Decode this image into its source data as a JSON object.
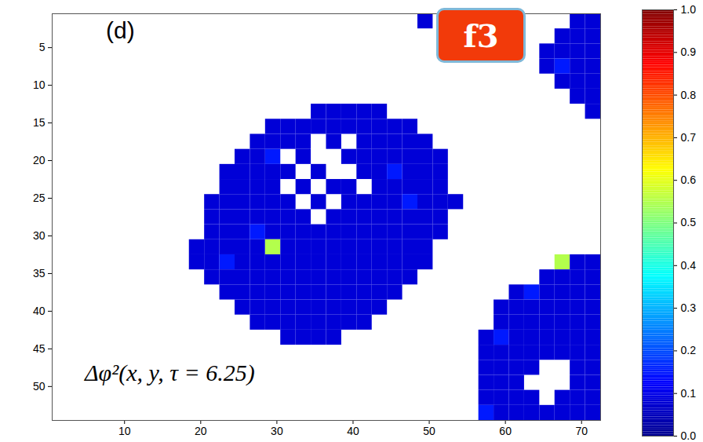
{
  "chart_data": {
    "type": "heatmap",
    "title": "Δφ²(x, y, τ = 6.25)",
    "panel": "(d)",
    "badge": "f3",
    "xlim": [
      0.5,
      72.5
    ],
    "ylim": [
      0.5,
      54.5
    ],
    "xticks": [
      10,
      20,
      30,
      40,
      50,
      60,
      70
    ],
    "yticks": [
      5,
      10,
      15,
      20,
      25,
      30,
      35,
      40,
      45,
      50
    ],
    "x": [
      1.5,
      3.5,
      5.5,
      7.5,
      9.5,
      11.5,
      13.5,
      15.5,
      17.5,
      19.5,
      21.5,
      23.5,
      25.5,
      27.5,
      29.5,
      31.5,
      33.5,
      35.5,
      37.5,
      39.5,
      41.5,
      43.5,
      45.5,
      47.5,
      49.5,
      51.5,
      53.5,
      55.5,
      57.5,
      59.5,
      61.5,
      63.5,
      65.5,
      67.5,
      69.5,
      71.5
    ],
    "y": [
      1.5,
      3.5,
      5.5,
      7.5,
      9.5,
      11.5,
      13.5,
      15.5,
      17.5,
      19.5,
      21.5,
      23.5,
      25.5,
      27.5,
      29.5,
      31.5,
      33.5,
      35.5,
      37.5,
      39.5,
      41.5,
      43.5,
      45.5,
      47.5,
      49.5,
      51.5,
      53.5
    ],
    "cells": [
      [
        null,
        null,
        null,
        null,
        null,
        null,
        null,
        null,
        null,
        null,
        null,
        null,
        null,
        null,
        null,
        null,
        null,
        null,
        null,
        null,
        null,
        null,
        null,
        null,
        0.08,
        null,
        null,
        null,
        null,
        null,
        null,
        null,
        null,
        null,
        0.08,
        0.08
      ],
      [
        null,
        null,
        null,
        null,
        null,
        null,
        null,
        null,
        null,
        null,
        null,
        null,
        null,
        null,
        null,
        null,
        null,
        null,
        null,
        null,
        null,
        null,
        null,
        null,
        null,
        null,
        null,
        null,
        null,
        null,
        null,
        null,
        null,
        0.08,
        0.08,
        0.08
      ],
      [
        null,
        null,
        null,
        null,
        null,
        null,
        null,
        null,
        null,
        null,
        null,
        null,
        null,
        null,
        null,
        null,
        null,
        null,
        null,
        null,
        null,
        null,
        null,
        null,
        null,
        null,
        null,
        null,
        null,
        null,
        null,
        null,
        0.08,
        0.08,
        0.08,
        0.08
      ],
      [
        null,
        null,
        null,
        null,
        null,
        null,
        null,
        null,
        null,
        null,
        null,
        null,
        null,
        null,
        null,
        null,
        null,
        null,
        null,
        null,
        null,
        null,
        null,
        null,
        null,
        null,
        null,
        null,
        null,
        null,
        null,
        null,
        0.08,
        0.15,
        0.08,
        0.08
      ],
      [
        null,
        null,
        null,
        null,
        null,
        null,
        null,
        null,
        null,
        null,
        null,
        null,
        null,
        null,
        null,
        null,
        null,
        null,
        null,
        null,
        null,
        null,
        null,
        null,
        null,
        null,
        null,
        null,
        null,
        null,
        null,
        null,
        null,
        0.08,
        0.08,
        0.08
      ],
      [
        null,
        null,
        null,
        null,
        null,
        null,
        null,
        null,
        null,
        null,
        null,
        null,
        null,
        null,
        null,
        null,
        null,
        null,
        null,
        null,
        null,
        null,
        null,
        null,
        null,
        null,
        null,
        null,
        null,
        null,
        null,
        null,
        null,
        null,
        0.08,
        0.08
      ],
      [
        null,
        null,
        null,
        null,
        null,
        null,
        null,
        null,
        null,
        null,
        null,
        null,
        null,
        null,
        null,
        null,
        null,
        0.08,
        0.08,
        0.08,
        0.08,
        0.08,
        null,
        null,
        null,
        null,
        null,
        null,
        null,
        null,
        null,
        null,
        null,
        null,
        null,
        0.08
      ],
      [
        null,
        null,
        null,
        null,
        null,
        null,
        null,
        null,
        null,
        null,
        null,
        null,
        null,
        null,
        0.08,
        0.08,
        0.08,
        0.08,
        0.08,
        0.08,
        0.08,
        0.08,
        0.08,
        0.08,
        null,
        null,
        null,
        null,
        null,
        null,
        null,
        null,
        null,
        null,
        null,
        null
      ],
      [
        null,
        null,
        null,
        null,
        null,
        null,
        null,
        null,
        null,
        null,
        null,
        null,
        null,
        0.08,
        0.08,
        0.08,
        0.08,
        null,
        0.08,
        null,
        0.08,
        0.08,
        0.08,
        0.08,
        0.08,
        null,
        null,
        null,
        null,
        null,
        null,
        null,
        null,
        null,
        null,
        null
      ],
      [
        null,
        null,
        null,
        null,
        null,
        null,
        null,
        null,
        null,
        null,
        null,
        null,
        0.08,
        0.08,
        0.15,
        null,
        0.08,
        null,
        null,
        0.08,
        0.08,
        0.08,
        0.08,
        0.08,
        0.08,
        0.08,
        null,
        null,
        null,
        null,
        null,
        null,
        null,
        null,
        null,
        null
      ],
      [
        null,
        null,
        null,
        null,
        null,
        null,
        null,
        null,
        null,
        null,
        null,
        0.08,
        0.08,
        0.08,
        0.08,
        0.08,
        null,
        0.08,
        null,
        null,
        0.08,
        0.08,
        0.15,
        0.08,
        0.08,
        0.08,
        null,
        null,
        null,
        null,
        null,
        null,
        null,
        null,
        null,
        null
      ],
      [
        null,
        null,
        null,
        null,
        null,
        null,
        null,
        null,
        null,
        null,
        null,
        0.08,
        0.08,
        0.08,
        0.08,
        null,
        0.08,
        null,
        0.08,
        0.08,
        null,
        0.08,
        0.08,
        0.08,
        0.08,
        0.08,
        null,
        null,
        null,
        null,
        null,
        null,
        null,
        null,
        null,
        null
      ],
      [
        null,
        null,
        null,
        null,
        null,
        null,
        null,
        null,
        null,
        null,
        0.08,
        0.08,
        0.08,
        0.08,
        0.08,
        0.08,
        null,
        0.08,
        null,
        0.08,
        0.08,
        0.08,
        0.08,
        0.15,
        0.08,
        0.08,
        0.08,
        null,
        null,
        null,
        null,
        null,
        null,
        null,
        null,
        null
      ],
      [
        null,
        null,
        null,
        null,
        null,
        null,
        null,
        null,
        null,
        null,
        0.08,
        0.08,
        0.08,
        0.08,
        0.08,
        0.08,
        0.08,
        null,
        0.08,
        0.08,
        0.08,
        0.08,
        0.08,
        0.08,
        0.08,
        0.08,
        null,
        null,
        null,
        null,
        null,
        null,
        null,
        null,
        null,
        null
      ],
      [
        null,
        null,
        null,
        null,
        null,
        null,
        null,
        null,
        null,
        null,
        0.08,
        0.08,
        0.08,
        0.15,
        0.08,
        0.08,
        0.08,
        0.08,
        0.08,
        0.08,
        0.08,
        0.08,
        0.08,
        0.08,
        0.08,
        0.08,
        null,
        null,
        null,
        null,
        null,
        null,
        null,
        null,
        null,
        null
      ],
      [
        null,
        null,
        null,
        null,
        null,
        null,
        null,
        null,
        null,
        0.08,
        0.08,
        0.08,
        0.08,
        0.08,
        0.55,
        0.08,
        0.08,
        0.08,
        0.08,
        0.08,
        0.08,
        0.08,
        0.08,
        0.08,
        0.08,
        null,
        null,
        null,
        null,
        null,
        null,
        null,
        null,
        null,
        null,
        null
      ],
      [
        null,
        null,
        null,
        null,
        null,
        null,
        null,
        null,
        null,
        0.08,
        0.08,
        0.15,
        0.08,
        0.08,
        0.08,
        0.08,
        0.08,
        0.08,
        0.08,
        0.08,
        0.08,
        0.08,
        0.08,
        0.08,
        0.08,
        null,
        null,
        null,
        null,
        null,
        null,
        null,
        null,
        0.55,
        0.08,
        0.08
      ],
      [
        null,
        null,
        null,
        null,
        null,
        null,
        null,
        null,
        null,
        null,
        0.08,
        0.08,
        0.08,
        0.08,
        0.08,
        0.08,
        0.08,
        0.08,
        0.08,
        0.08,
        0.08,
        0.08,
        0.08,
        0.08,
        null,
        null,
        null,
        null,
        null,
        null,
        null,
        null,
        0.08,
        0.08,
        0.08,
        0.08
      ],
      [
        null,
        null,
        null,
        null,
        null,
        null,
        null,
        null,
        null,
        null,
        null,
        0.08,
        0.08,
        0.08,
        0.08,
        0.08,
        0.08,
        0.08,
        0.08,
        0.08,
        0.08,
        0.08,
        0.08,
        null,
        null,
        null,
        null,
        null,
        null,
        null,
        0.08,
        0.15,
        0.08,
        0.08,
        0.08,
        0.08
      ],
      [
        null,
        null,
        null,
        null,
        null,
        null,
        null,
        null,
        null,
        null,
        null,
        null,
        0.08,
        0.08,
        0.08,
        0.08,
        0.08,
        0.08,
        0.08,
        0.08,
        0.08,
        0.08,
        null,
        null,
        null,
        null,
        null,
        null,
        null,
        0.08,
        0.08,
        0.08,
        0.08,
        0.08,
        0.08,
        0.08
      ],
      [
        null,
        null,
        null,
        null,
        null,
        null,
        null,
        null,
        null,
        null,
        null,
        null,
        null,
        0.08,
        0.08,
        0.08,
        0.08,
        0.08,
        0.08,
        0.08,
        0.08,
        null,
        null,
        null,
        null,
        null,
        null,
        null,
        null,
        0.08,
        0.08,
        0.08,
        0.08,
        0.08,
        0.08,
        0.08
      ],
      [
        null,
        null,
        null,
        null,
        null,
        null,
        null,
        null,
        null,
        null,
        null,
        null,
        null,
        null,
        null,
        0.08,
        0.08,
        0.08,
        0.08,
        null,
        null,
        null,
        null,
        null,
        null,
        null,
        null,
        null,
        0.08,
        0.15,
        0.08,
        0.08,
        0.08,
        0.08,
        0.08,
        0.08
      ],
      [
        null,
        null,
        null,
        null,
        null,
        null,
        null,
        null,
        null,
        null,
        null,
        null,
        null,
        null,
        null,
        null,
        null,
        null,
        null,
        null,
        null,
        null,
        null,
        null,
        null,
        null,
        null,
        null,
        0.08,
        0.08,
        0.08,
        0.08,
        0.08,
        0.08,
        0.08,
        0.08
      ],
      [
        null,
        null,
        null,
        null,
        null,
        null,
        null,
        null,
        null,
        null,
        null,
        null,
        null,
        null,
        null,
        null,
        null,
        null,
        null,
        null,
        null,
        null,
        null,
        null,
        null,
        null,
        null,
        null,
        0.08,
        0.08,
        0.08,
        0.08,
        null,
        null,
        0.08,
        0.08
      ],
      [
        null,
        null,
        null,
        null,
        null,
        null,
        null,
        null,
        null,
        null,
        null,
        null,
        null,
        null,
        null,
        null,
        null,
        null,
        null,
        null,
        null,
        null,
        null,
        null,
        null,
        null,
        null,
        null,
        0.08,
        0.08,
        0.08,
        null,
        null,
        null,
        0.08,
        0.08
      ],
      [
        null,
        null,
        null,
        null,
        null,
        null,
        null,
        null,
        null,
        null,
        null,
        null,
        null,
        null,
        null,
        null,
        null,
        null,
        null,
        null,
        null,
        null,
        null,
        null,
        null,
        null,
        null,
        null,
        0.08,
        0.08,
        0.08,
        0.08,
        null,
        0.08,
        0.08,
        0.08
      ],
      [
        null,
        null,
        null,
        null,
        null,
        null,
        null,
        null,
        null,
        null,
        null,
        null,
        null,
        null,
        null,
        null,
        null,
        null,
        null,
        null,
        null,
        null,
        null,
        null,
        null,
        null,
        null,
        null,
        0.15,
        0.08,
        0.08,
        0.08,
        0.08,
        0.08,
        0.08,
        0.08
      ]
    ],
    "colorbar": {
      "range": [
        0,
        1
      ],
      "ticks": [
        0,
        0.1,
        0.2,
        0.3,
        0.4,
        0.5,
        0.6,
        0.7,
        0.8,
        0.9,
        1
      ]
    }
  }
}
